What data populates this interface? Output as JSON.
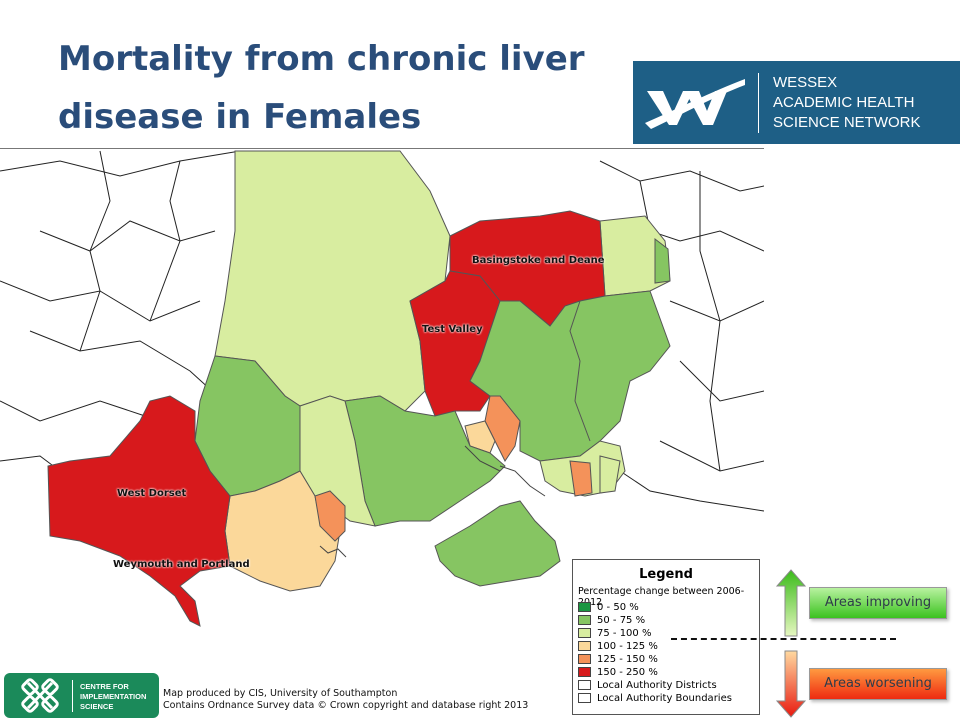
{
  "title": {
    "line1": "Mortality from chronic liver",
    "line2": "disease in Females"
  },
  "logo": {
    "line1": "WESSEX",
    "line2": "ACADEMIC HEALTH",
    "line3": "SCIENCE NETWORK"
  },
  "map": {
    "labels": {
      "basingstoke": "Basingstoke and Deane",
      "test_valley": "Test Valley",
      "west_dorset": "West Dorset",
      "weymouth": "Weymouth and Portland"
    }
  },
  "legend": {
    "title": "Legend",
    "subtitle": "Percentage change between 2006-2012",
    "items": [
      {
        "label": "0 - 50 %",
        "color": "#1a9641"
      },
      {
        "label": "50 - 75 %",
        "color": "#86c562"
      },
      {
        "label": "75 - 100 %",
        "color": "#d8eda0"
      },
      {
        "label": "100 - 125 %",
        "color": "#fbd89a"
      },
      {
        "label": "125 - 150 %",
        "color": "#f4925a"
      },
      {
        "label": "150 - 250 %",
        "color": "#d7191c"
      },
      {
        "label": "Local Authority Districts",
        "color": "#ffffff"
      },
      {
        "label": "Local Authority Boundaries",
        "color": "#ffffff"
      }
    ]
  },
  "cis": {
    "line1": "CENTRE FOR",
    "line2": "IMPLEMENTATION",
    "line3": "SCIENCE"
  },
  "credit": {
    "line1": "Map produced by CIS, University of Southampton",
    "line2": "Contains Ordnance Survey data © Crown copyright and database right 2013"
  },
  "indicators": {
    "improving": "Areas improving",
    "worsening": "Areas worsening"
  },
  "colors": {
    "title": "#2a4d7a",
    "logo_bg": "#1e5f86",
    "cis_bg": "#1b8a5a"
  }
}
